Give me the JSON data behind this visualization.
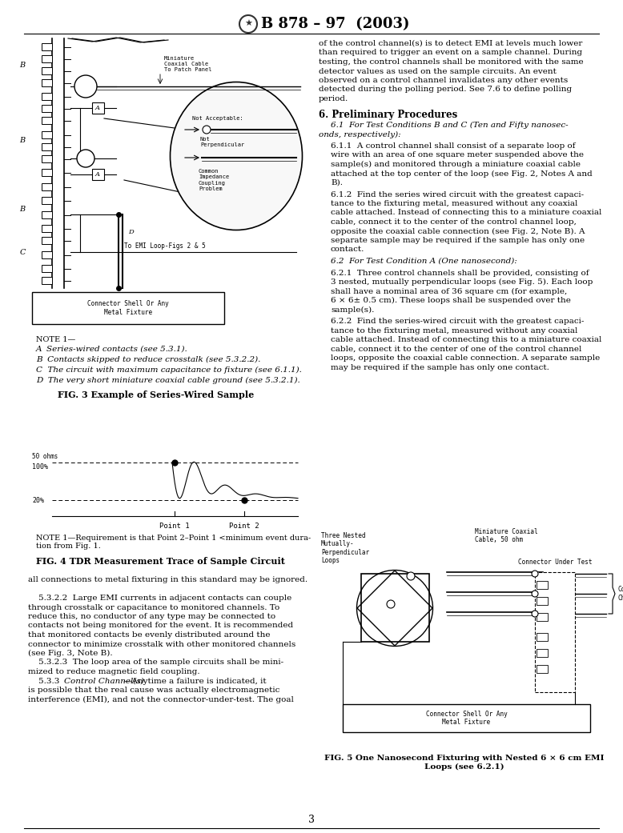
{
  "page_bg": "#ffffff",
  "text_color": "#000000",
  "header_text": "B 878 – 97  (2003)",
  "page_number": "3",
  "fig3_title": "FIG. 3 Example of Series-Wired Sample",
  "fig4_title": "FIG. 4 TDR Measurement Trace of Sample Circuit",
  "fig5_title": "FIG. 5 One Nanosecond Fixturing with Nested 6 × 6 cm EMI\nLoops (see 6.2.1)",
  "right_col_para1": [
    "of the control channel(s) is to detect EMI at levels much lower",
    "than required to trigger an event on a sample channel. During",
    "testing, the control channels shall be monitored with the same",
    "detector values as used on the sample circuits. An event",
    "observed on a control channel invalidates any other events",
    "detected during the polling period. See 7.6 to define polling",
    "period."
  ],
  "right_col_sec6_title": "6. Preliminary Procedures",
  "right_col_sec61_head": "6.1  For Test Conditions B and C (Ten and Fifty nanosec-",
  "right_col_sec61_head2": "onds, respectively):",
  "right_col_611": [
    "6.1.1  A control channel shall consist of a separate loop of",
    "wire with an area of one square meter suspended above the",
    "sample(s) and monitored through a miniature coaxial cable",
    "attached at the top center of the loop (see Fig. 2, Notes A and",
    "B)."
  ],
  "right_col_612": [
    "6.1.2  Find the series wired circuit with the greatest capaci-",
    "tance to the fixturing metal, measured without any coaxial",
    "cable attached. Instead of connecting this to a miniature coaxial",
    "cable, connect it to the center of the control channel loop,",
    "opposite the coaxial cable connection (see Fig. 2, Note B). A",
    "separate sample may be required if the sample has only one",
    "contact."
  ],
  "right_col_62_head": "6.2  For Test Condition A (One nanosecond):",
  "right_col_621": [
    "6.2.1  Three control channels shall be provided, consisting of",
    "3 nested, mutually perpendicular loops (see Fig. 5). Each loop",
    "shall have a nominal area of 36 square cm (for example,",
    "6 × 6± 0.5 cm). These loops shall be suspended over the",
    "sample(s)."
  ],
  "right_col_622": [
    "6.2.2  Find the series-wired circuit with the greatest capaci-",
    "tance to the fixturing metal, measured without any coaxial",
    "cable attached. Instead of connecting this to a miniature coaxial",
    "cable, connect it to the center of one of the control channel",
    "loops, opposite the coaxial cable connection. A separate sample",
    "may be required if the sample has only one contact."
  ],
  "left_bottom_text": [
    "all connections to metal fixturing in this standard may be ignored.",
    "",
    "    5.3.2.2  Large EMI currents in adjacent contacts can couple",
    "through crosstalk or capacitance to monitored channels. To",
    "reduce this, no conductor of any type may be connected to",
    "contacts not being monitored for the event. It is recommended",
    "that monitored contacts be evenly distributed around the",
    "connector to minimize crosstalk with other monitored channels",
    "(see Fig. 3, Note B).",
    "    5.3.2.3  The loop area of the sample circuits shall be mini-",
    "mized to reduce magnetic field coupling.",
    "    5.3.3  Control Channel(s)—Anytime a failure is indicated, it",
    "is possible that the real cause was actually electromagnetic",
    "interference (EMI), and not the connector-under-test. The goal"
  ],
  "fig3_note0": "NOTE 1—",
  "fig3_notes": [
    "A  Series-wired contacts (see 5.3.1).",
    "B  Contacts skipped to reduce crosstalk (see 5.3.2.2).",
    "C  The circuit with maximum capacitance to fixture (see 6.1.1).",
    "D  The very short miniature coaxial cable ground (see 5.3.2.1)."
  ],
  "fig4_note": "NOTE 1—Requirement is that Point 2–Point 1 <minimum event dura-\ntion from Fig. 1."
}
